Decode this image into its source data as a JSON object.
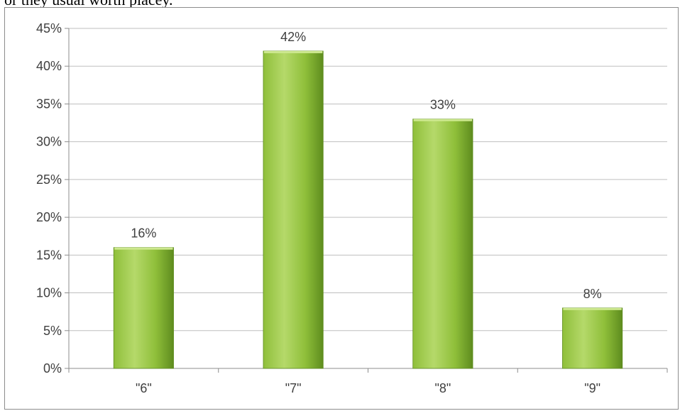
{
  "top_text": "or they usual worth placey.",
  "colors": {
    "bar_light": "#b5d96a",
    "bar_mid": "#8fbf3a",
    "bar_dark": "#5e8c1e",
    "bar_top": "#cde88f",
    "grid": "#bfbfbf",
    "axis": "#8c8c8c",
    "text": "#404040"
  },
  "chart_data": {
    "type": "bar",
    "title": "",
    "xlabel": "",
    "ylabel": "",
    "categories": [
      "\"6\"",
      "\"7\"",
      "\"8\"",
      "\"9\""
    ],
    "values": [
      16,
      42,
      33,
      8
    ],
    "data_labels": [
      "16%",
      "42%",
      "33%",
      "8%"
    ],
    "ylim": [
      0,
      45
    ],
    "y_ticks": [
      0,
      5,
      10,
      15,
      20,
      25,
      30,
      35,
      40,
      45
    ],
    "y_tick_labels": [
      "0%",
      "5%",
      "10%",
      "15%",
      "20%",
      "25%",
      "30%",
      "35%",
      "40%",
      "45%"
    ],
    "grid": true,
    "legend": "none"
  }
}
